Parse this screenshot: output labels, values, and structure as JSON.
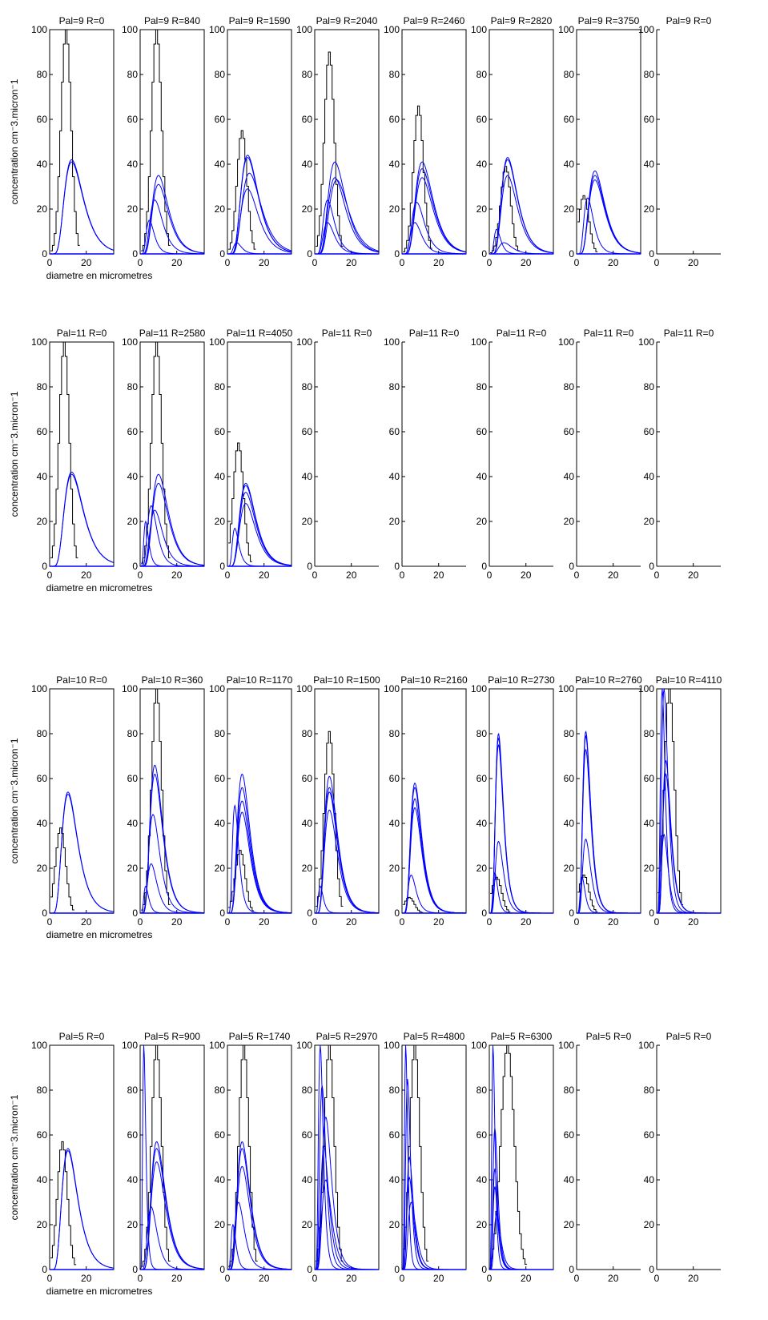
{
  "figure": {
    "ylabel": "concentration cm⁻3.micron⁻1",
    "xlabel": "diametre en micrometres",
    "hist_color": "#000000",
    "fit_color": "#0000ff",
    "axis_color": "#000000"
  },
  "chart_data": {
    "type": "line",
    "grid": false,
    "xlim": [
      0,
      35
    ],
    "ylim": [
      0,
      100
    ],
    "xticks": [
      0,
      20
    ],
    "yticks": [
      0,
      20,
      40,
      60,
      80,
      100
    ],
    "ylabel": "concentration cm⁻3.micron⁻1",
    "xlabel": "diametre en micrometres",
    "rows": [
      {
        "panels": [
          {
            "title": "Pal=9 R=0",
            "hist": {
              "peak": 100,
              "mode": 9,
              "width": 3
            },
            "fits": [
              {
                "peak": 42,
                "mode": 12
              },
              {
                "peak": 41,
                "mode": 12
              }
            ]
          },
          {
            "title": "Pal=9 R=840",
            "hist": {
              "peak": 100,
              "mode": 9,
              "width": 3
            },
            "fits": [
              {
                "peak": 35,
                "mode": 10
              },
              {
                "peak": 31,
                "mode": 10
              },
              {
                "peak": 24,
                "mode": 8
              },
              {
                "peak": 15,
                "mode": 5
              }
            ]
          },
          {
            "title": "Pal=9 R=1590",
            "hist": {
              "peak": 55,
              "mode": 8,
              "width": 3
            },
            "fits": [
              {
                "peak": 44,
                "mode": 11
              },
              {
                "peak": 43,
                "mode": 11
              },
              {
                "peak": 36,
                "mode": 12
              },
              {
                "peak": 29,
                "mode": 11
              },
              {
                "peak": 5,
                "mode": 5
              }
            ]
          },
          {
            "title": "Pal=9 R=2040",
            "hist": {
              "peak": 90,
              "mode": 8,
              "width": 3
            },
            "fits": [
              {
                "peak": 41,
                "mode": 11
              },
              {
                "peak": 34,
                "mode": 11
              },
              {
                "peak": 33,
                "mode": 12
              },
              {
                "peak": 24,
                "mode": 7
              },
              {
                "peak": 14,
                "mode": 7
              }
            ]
          },
          {
            "title": "Pal=9 R=2460",
            "hist": {
              "peak": 66,
              "mode": 9,
              "width": 3
            },
            "fits": [
              {
                "peak": 41,
                "mode": 11
              },
              {
                "peak": 38,
                "mode": 11
              },
              {
                "peak": 34,
                "mode": 11
              },
              {
                "peak": 23,
                "mode": 8
              },
              {
                "peak": 14,
                "mode": 7
              }
            ]
          },
          {
            "title": "Pal=9 R=2820",
            "hist": {
              "peak": 39,
              "mode": 9,
              "width": 3
            },
            "fits": [
              {
                "peak": 43,
                "mode": 10
              },
              {
                "peak": 42,
                "mode": 10
              },
              {
                "peak": 35,
                "mode": 10
              },
              {
                "peak": 11,
                "mode": 4
              },
              {
                "peak": 5,
                "mode": 8
              }
            ]
          },
          {
            "title": "Pal=9 R=3750",
            "hist": {
              "peak": 26,
              "mode": 4,
              "width": 3
            },
            "fits": [
              {
                "peak": 37,
                "mode": 10
              },
              {
                "peak": 35,
                "mode": 10
              },
              {
                "peak": 33,
                "mode": 10
              },
              {
                "peak": 25,
                "mode": 6
              }
            ]
          },
          {
            "title": "Pal=9 R=0",
            "hist": null,
            "fits": []
          }
        ]
      },
      {
        "panels": [
          {
            "title": "Pal=11 R=0",
            "hist": {
              "peak": 100,
              "mode": 8,
              "width": 3
            },
            "fits": [
              {
                "peak": 42,
                "mode": 12
              },
              {
                "peak": 41,
                "mode": 12
              }
            ]
          },
          {
            "title": "Pal=11 R=2580",
            "hist": {
              "peak": 100,
              "mode": 9,
              "width": 3
            },
            "fits": [
              {
                "peak": 41,
                "mode": 10
              },
              {
                "peak": 37,
                "mode": 10
              },
              {
                "peak": 27,
                "mode": 6
              },
              {
                "peak": 25,
                "mode": 8
              },
              {
                "peak": 20,
                "mode": 3
              }
            ]
          },
          {
            "title": "Pal=11 R=4050",
            "hist": {
              "peak": 55,
              "mode": 6,
              "width": 3
            },
            "fits": [
              {
                "peak": 37,
                "mode": 10
              },
              {
                "peak": 36,
                "mode": 10
              },
              {
                "peak": 33,
                "mode": 10
              },
              {
                "peak": 28,
                "mode": 10
              },
              {
                "peak": 17,
                "mode": 4
              }
            ]
          },
          {
            "title": "Pal=11 R=0",
            "hist": null,
            "fits": []
          },
          {
            "title": "Pal=11 R=0",
            "hist": null,
            "fits": []
          },
          {
            "title": "Pal=11 R=0",
            "hist": null,
            "fits": []
          },
          {
            "title": "Pal=11 R=0",
            "hist": null,
            "fits": []
          },
          {
            "title": "Pal=11 R=0",
            "hist": null,
            "fits": []
          }
        ]
      },
      {
        "panels": [
          {
            "title": "Pal=10 R=0",
            "hist": {
              "peak": 38,
              "mode": 6,
              "width": 3
            },
            "fits": [
              {
                "peak": 54,
                "mode": 10
              },
              {
                "peak": 53,
                "mode": 10
              }
            ]
          },
          {
            "title": "Pal=10 R=360",
            "hist": {
              "peak": 100,
              "mode": 9,
              "width": 3
            },
            "fits": [
              {
                "peak": 66,
                "mode": 8
              },
              {
                "peak": 62,
                "mode": 8
              },
              {
                "peak": 44,
                "mode": 7
              },
              {
                "peak": 22,
                "mode": 6
              },
              {
                "peak": 12,
                "mode": 3
              }
            ]
          },
          {
            "title": "Pal=10 R=1170",
            "hist": {
              "peak": 28,
              "mode": 7,
              "width": 3
            },
            "fits": [
              {
                "peak": 62,
                "mode": 8
              },
              {
                "peak": 56,
                "mode": 8
              },
              {
                "peak": 50,
                "mode": 8
              },
              {
                "peak": 48,
                "mode": 4
              },
              {
                "peak": 45,
                "mode": 8
              }
            ]
          },
          {
            "title": "Pal=10 R=1500",
            "hist": {
              "peak": 81,
              "mode": 8,
              "width": 3
            },
            "fits": [
              {
                "peak": 61,
                "mode": 8
              },
              {
                "peak": 56,
                "mode": 8
              },
              {
                "peak": 54,
                "mode": 8
              },
              {
                "peak": 46,
                "mode": 8
              },
              {
                "peak": 12,
                "mode": 3
              }
            ]
          },
          {
            "title": "Pal=10 R=2160",
            "hist": {
              "peak": 7,
              "mode": 4,
              "width": 3
            },
            "fits": [
              {
                "peak": 58,
                "mode": 7
              },
              {
                "peak": 56,
                "mode": 7
              },
              {
                "peak": 51,
                "mode": 7
              },
              {
                "peak": 47,
                "mode": 7
              },
              {
                "peak": 17,
                "mode": 5
              }
            ]
          },
          {
            "title": "Pal=10 R=2730",
            "hist": {
              "peak": 16,
              "mode": 4,
              "width": 3
            },
            "fits": [
              {
                "peak": 80,
                "mode": 5
              },
              {
                "peak": 78,
                "mode": 5
              },
              {
                "peak": 75,
                "mode": 5
              },
              {
                "peak": 32,
                "mode": 5
              },
              {
                "peak": 18,
                "mode": 3
              }
            ]
          },
          {
            "title": "Pal=10 R=2760",
            "hist": {
              "peak": 17,
              "mode": 4,
              "width": 3
            },
            "fits": [
              {
                "peak": 81,
                "mode": 5
              },
              {
                "peak": 79,
                "mode": 5
              },
              {
                "peak": 73,
                "mode": 5
              },
              {
                "peak": 33,
                "mode": 5
              },
              {
                "peak": 16,
                "mode": 3
              }
            ]
          },
          {
            "title": "Pal=10 R=4110",
            "hist": {
              "peak": 100,
              "mode": 7,
              "width": 3
            },
            "fits": [
              {
                "peak": 100,
                "mode": 3
              },
              {
                "peak": 100,
                "mode": 4
              },
              {
                "peak": 68,
                "mode": 5
              },
              {
                "peak": 62,
                "mode": 5
              },
              {
                "peak": 35,
                "mode": 4
              }
            ]
          }
        ]
      },
      {
        "panels": [
          {
            "title": "Pal=5 R=0",
            "hist": {
              "peak": 57,
              "mode": 7,
              "width": 3
            },
            "fits": [
              {
                "peak": 54,
                "mode": 10
              },
              {
                "peak": 53,
                "mode": 10
              }
            ]
          },
          {
            "title": "Pal=5 R=900",
            "hist": {
              "peak": 100,
              "mode": 9,
              "width": 3
            },
            "fits": [
              {
                "peak": 100,
                "mode": 2
              },
              {
                "peak": 57,
                "mode": 9
              },
              {
                "peak": 54,
                "mode": 9
              },
              {
                "peak": 48,
                "mode": 9
              },
              {
                "peak": 28,
                "mode": 6
              }
            ]
          },
          {
            "title": "Pal=5 R=1740",
            "hist": {
              "peak": 100,
              "mode": 9,
              "width": 3
            },
            "fits": [
              {
                "peak": 57,
                "mode": 8
              },
              {
                "peak": 54,
                "mode": 8
              },
              {
                "peak": 46,
                "mode": 8
              },
              {
                "peak": 30,
                "mode": 6
              },
              {
                "peak": 20,
                "mode": 3
              }
            ]
          },
          {
            "title": "Pal=5 R=2970",
            "hist": {
              "peak": 100,
              "mode": 8,
              "width": 3
            },
            "fits": [
              {
                "peak": 100,
                "mode": 3
              },
              {
                "peak": 82,
                "mode": 4
              },
              {
                "peak": 68,
                "mode": 6
              },
              {
                "peak": 55,
                "mode": 5
              },
              {
                "peak": 40,
                "mode": 6
              }
            ]
          },
          {
            "title": "Pal=5 R=4800",
            "hist": {
              "peak": 100,
              "mode": 7,
              "width": 3
            },
            "fits": [
              {
                "peak": 100,
                "mode": 2
              },
              {
                "peak": 85,
                "mode": 3
              },
              {
                "peak": 50,
                "mode": 4
              },
              {
                "peak": 41,
                "mode": 4
              },
              {
                "peak": 30,
                "mode": 5
              }
            ]
          },
          {
            "title": "Pal=5 R=6300",
            "hist": {
              "peak": 100,
              "mode": 10,
              "width": 4
            },
            "fits": [
              {
                "peak": 100,
                "mode": 2
              },
              {
                "peak": 63,
                "mode": 3
              },
              {
                "peak": 45,
                "mode": 3
              },
              {
                "peak": 37,
                "mode": 3
              },
              {
                "peak": 25,
                "mode": 4
              }
            ]
          },
          {
            "title": "Pal=5 R=0",
            "hist": null,
            "fits": []
          },
          {
            "title": "Pal=5 R=0",
            "hist": null,
            "fits": []
          }
        ]
      }
    ]
  }
}
